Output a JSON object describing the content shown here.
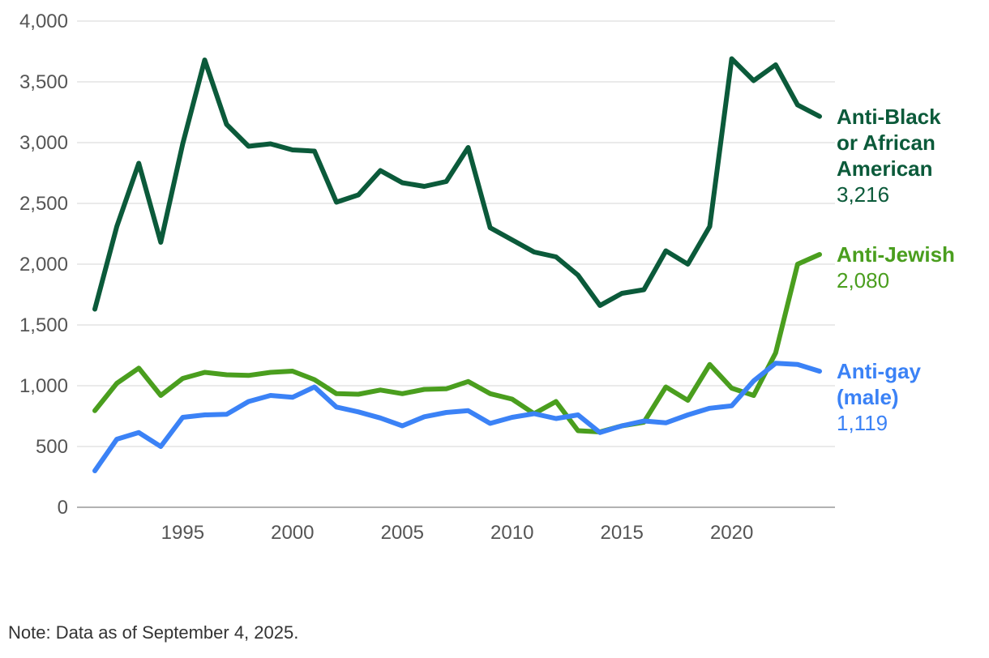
{
  "chart_data": {
    "type": "line",
    "title": "",
    "xlabel": "",
    "ylabel": "",
    "xlim": [
      1991,
      2024
    ],
    "ylim": [
      0,
      4000
    ],
    "yticks": [
      0,
      500,
      1000,
      1500,
      2000,
      2500,
      3000,
      3500,
      4000
    ],
    "ytick_labels": [
      "0",
      "500",
      "1,000",
      "1,500",
      "2,000",
      "2,500",
      "3,000",
      "3,500",
      "4,000"
    ],
    "xticks": [
      1995,
      2000,
      2005,
      2010,
      2015,
      2020
    ],
    "xtick_labels": [
      "1995",
      "2000",
      "2005",
      "2010",
      "2015",
      "2020"
    ],
    "grid": "horizontal",
    "x": [
      1991,
      1992,
      1993,
      1994,
      1995,
      1996,
      1997,
      1998,
      1999,
      2000,
      2001,
      2002,
      2003,
      2004,
      2005,
      2006,
      2007,
      2008,
      2009,
      2010,
      2011,
      2012,
      2013,
      2014,
      2015,
      2016,
      2017,
      2018,
      2019,
      2020,
      2021,
      2022,
      2023,
      2024
    ],
    "series": [
      {
        "name": "Anti-Black or African American",
        "label_lines": [
          "Anti-Black",
          "or African",
          "American"
        ],
        "end_value_label": "3,216",
        "color": "#0b5a3a",
        "values": [
          1630,
          2310,
          2830,
          2180,
          2990,
          3680,
          3150,
          2970,
          2990,
          2940,
          2930,
          2510,
          2570,
          2770,
          2670,
          2640,
          2680,
          2960,
          2300,
          2200,
          2100,
          2060,
          1910,
          1660,
          1760,
          1790,
          2110,
          2000,
          2310,
          3690,
          3510,
          3640,
          3310,
          3216
        ]
      },
      {
        "name": "Anti-Jewish",
        "label_lines": [
          "Anti-Jewish"
        ],
        "end_value_label": "2,080",
        "color": "#4a9e1e",
        "values": [
          795,
          1020,
          1145,
          920,
          1060,
          1110,
          1090,
          1085,
          1110,
          1120,
          1050,
          935,
          930,
          965,
          935,
          970,
          975,
          1035,
          935,
          890,
          770,
          870,
          630,
          620,
          670,
          700,
          990,
          880,
          1175,
          980,
          920,
          1270,
          2000,
          2080
        ]
      },
      {
        "name": "Anti-gay (male)",
        "label_lines": [
          "Anti-gay",
          "(male)"
        ],
        "end_value_label": "1,119",
        "color": "#3b82f6",
        "values": [
          300,
          560,
          615,
          500,
          740,
          760,
          765,
          870,
          920,
          905,
          990,
          825,
          785,
          735,
          670,
          745,
          780,
          795,
          690,
          740,
          770,
          730,
          760,
          615,
          670,
          710,
          695,
          760,
          815,
          835,
          1040,
          1185,
          1175,
          1119
        ]
      }
    ]
  },
  "note": "Note: Data as of September 4, 2025."
}
